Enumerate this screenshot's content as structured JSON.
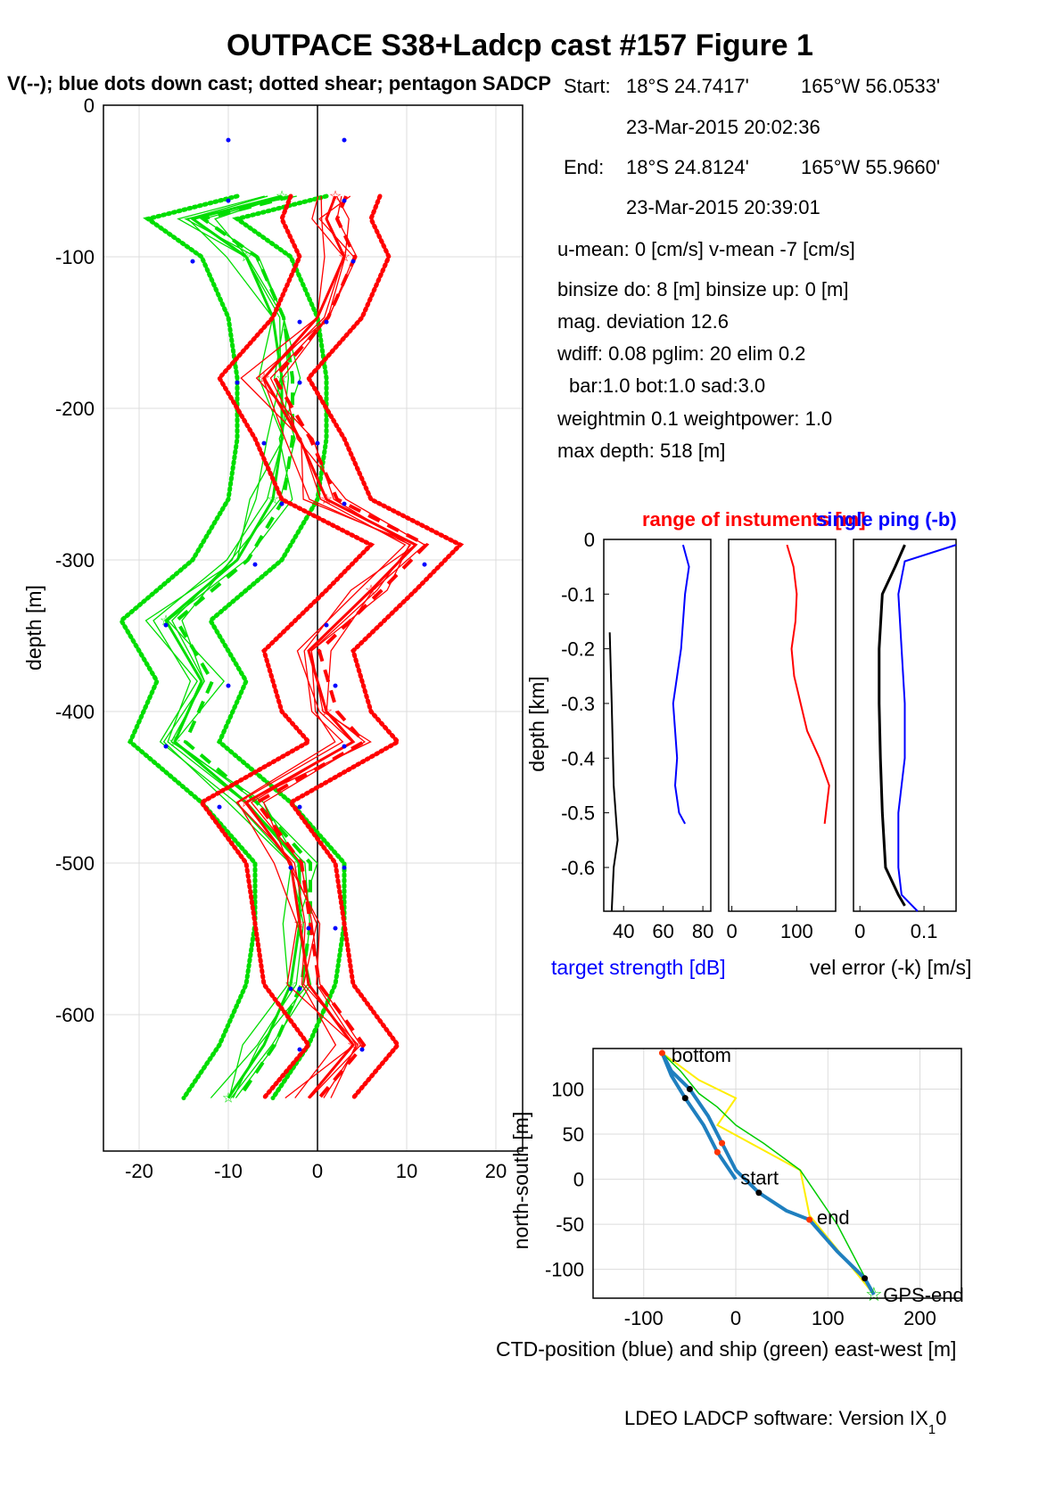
{
  "figure": {
    "title": "OUTPACE S38+Ladcp cast #157  Figure 1",
    "subtitle": "V(--); blue dots down cast; dotted shear; pentagon SADCP",
    "footer": "LDEO LADCP software: Version IX",
    "footer_sub": "1",
    "footer_tail": "0"
  },
  "info": {
    "start_label": "Start:",
    "start_lat": "18°S 24.7417'",
    "start_lon": "165°W 56.0533'",
    "start_time": "23-Mar-2015 20:02:36",
    "end_label": "End:",
    "end_lat": "18°S 24.8124'",
    "end_lon": "165°W 55.9660'",
    "end_time": "23-Mar-2015 20:39:01",
    "umean": "u-mean:   0 [cm/s]    v-mean  -7 [cm/s]",
    "binsize": "binsize do: 8 [m]  binsize up:  0 [m]",
    "magdev": "mag. deviation 12.6",
    "wdiff": "wdiff: 0.08  pglim: 20  elim 0.2",
    "bar": "bar:1.0 bot:1.0 sad:3.0",
    "weight": "weightmin 0.1  weightpower: 1.0",
    "maxdepth": "max depth: 518 [m]"
  },
  "chart_data": [
    {
      "type": "line",
      "ylabel": "depth [m]",
      "xlim": [
        -24,
        23
      ],
      "ylim": [
        -690,
        0
      ],
      "xticks": [
        "-20",
        "-10",
        "0",
        "10",
        "20"
      ],
      "yticks": [
        "0",
        "-100",
        "-200",
        "-300",
        "-400",
        "-500",
        "-600"
      ],
      "grid": true,
      "series": [
        {
          "color": "#00dd00",
          "depth": [
            -60,
            -75,
            -100,
            -140,
            -180,
            -220,
            -260,
            -300,
            -340,
            -380,
            -420,
            -460,
            -500,
            -540,
            -580,
            -620,
            -655
          ],
          "values": [
            -4,
            -14,
            -8,
            -5,
            -4,
            -4,
            -5,
            -9,
            -17,
            -13,
            -16,
            -8,
            -2,
            -2,
            -3,
            -6,
            -10
          ]
        },
        {
          "color": "#ff0000",
          "depth": [
            -60,
            -75,
            -100,
            -140,
            -180,
            -220,
            -260,
            -290,
            -320,
            -360,
            -400,
            -420,
            -460,
            -500,
            -540,
            -580,
            -620,
            -655
          ],
          "values": [
            2,
            1,
            3,
            0,
            -6,
            -2,
            1,
            11,
            6,
            -1,
            1,
            4,
            -8,
            -3,
            -2,
            -1,
            4,
            -1
          ]
        }
      ],
      "blue_dots_depth": [
        -23,
        -63,
        -103,
        -143,
        -183,
        -223,
        -263,
        -303,
        -343,
        -383,
        -423,
        -463,
        -503,
        -543,
        -583,
        -623
      ],
      "blue_dots_green": [
        -10,
        -10,
        -14,
        -2,
        -9,
        -6,
        -4,
        -7,
        -17,
        -10,
        -17,
        -11,
        -3,
        -1,
        -3,
        -2
      ],
      "blue_dots_red": [
        3,
        3,
        4,
        1,
        -2,
        0,
        3,
        12,
        1,
        2,
        3,
        -2,
        3,
        2,
        -2,
        5
      ]
    },
    {
      "type": "line",
      "xlabel": "target strength [dB]",
      "ylabel": "depth [km]",
      "xlim": [
        30,
        84
      ],
      "ylim": [
        -0.68,
        0
      ],
      "xticks": [
        "40",
        "60",
        "80"
      ],
      "yticks": [
        "0",
        "-0.1",
        "-0.2",
        "-0.3",
        "-0.4",
        "-0.5",
        "-0.6"
      ],
      "series": [
        {
          "color": "#0000ff",
          "depth": [
            -0.01,
            -0.05,
            -0.1,
            -0.15,
            -0.2,
            -0.25,
            -0.3,
            -0.35,
            -0.4,
            -0.45,
            -0.5,
            -0.52
          ],
          "values": [
            70,
            73,
            71,
            70,
            69,
            67,
            65,
            66,
            67,
            66,
            68,
            71
          ]
        },
        {
          "color": "#000000",
          "depth": [
            -0.17,
            -0.3,
            -0.45,
            -0.55,
            -0.6,
            -0.68
          ],
          "values": [
            33,
            34,
            35,
            37,
            35,
            34
          ]
        }
      ]
    },
    {
      "type": "line",
      "title": "range of instuments [m]",
      "xlim": [
        -5,
        160
      ],
      "ylim": [
        -0.68,
        0
      ],
      "xticks": [
        "0",
        "100"
      ],
      "series": [
        {
          "color": "#ff0000",
          "depth": [
            -0.01,
            -0.05,
            -0.1,
            -0.15,
            -0.2,
            -0.25,
            -0.3,
            -0.35,
            -0.4,
            -0.45,
            -0.5,
            -0.52
          ],
          "values": [
            85,
            95,
            100,
            98,
            92,
            96,
            106,
            116,
            135,
            150,
            145,
            143
          ]
        }
      ]
    },
    {
      "type": "line",
      "title": "single ping (-b)",
      "xlabel": "vel error (-k) [m/s]",
      "xlim": [
        -0.01,
        0.15
      ],
      "ylim": [
        -0.68,
        0
      ],
      "xticks": [
        "0",
        "0.1"
      ],
      "series": [
        {
          "color": "#000000",
          "depth": [
            -0.01,
            -0.05,
            -0.1,
            -0.2,
            -0.3,
            -0.4,
            -0.5,
            -0.6,
            -0.65,
            -0.67
          ],
          "values": [
            0.07,
            0.055,
            0.035,
            0.03,
            0.03,
            0.032,
            0.035,
            0.04,
            0.06,
            0.07
          ]
        },
        {
          "color": "#0000ff",
          "depth": [
            -0.01,
            -0.04,
            -0.1,
            -0.2,
            -0.3,
            -0.4,
            -0.5,
            -0.6,
            -0.65,
            -0.68
          ],
          "values": [
            0.15,
            0.07,
            0.06,
            0.065,
            0.07,
            0.07,
            0.06,
            0.06,
            0.065,
            0.09
          ]
        }
      ]
    },
    {
      "type": "scatter",
      "xlabel": "CTD-position (blue) and ship (green) east-west [m]",
      "ylabel": "north-south [m]",
      "xlim": [
        -155,
        245
      ],
      "ylim": [
        -132,
        145
      ],
      "xticks": [
        "-100",
        "0",
        "100",
        "200"
      ],
      "yticks": [
        "100",
        "50",
        "0",
        "-50",
        "-100"
      ],
      "grid": true,
      "ctd_track": [
        [
          0,
          0
        ],
        [
          -20,
          30
        ],
        [
          -35,
          60
        ],
        [
          -55,
          90
        ],
        [
          -70,
          115
        ],
        [
          -80,
          140
        ],
        [
          -70,
          120
        ],
        [
          -50,
          100
        ],
        [
          -30,
          70
        ],
        [
          -15,
          40
        ],
        [
          0,
          10
        ],
        [
          25,
          -15
        ],
        [
          55,
          -35
        ],
        [
          80,
          -45
        ],
        [
          110,
          -80
        ],
        [
          140,
          -110
        ],
        [
          150,
          -128
        ]
      ],
      "ship_track": [
        [
          -80,
          140
        ],
        [
          -60,
          120
        ],
        [
          -40,
          95
        ],
        [
          -20,
          80
        ],
        [
          0,
          60
        ],
        [
          30,
          40
        ],
        [
          70,
          10
        ],
        [
          110,
          -50
        ],
        [
          150,
          -128
        ]
      ],
      "yellow_track": [
        [
          -80,
          140
        ],
        [
          -40,
          110
        ],
        [
          0,
          90
        ],
        [
          -20,
          60
        ],
        [
          70,
          10
        ],
        [
          80,
          -40
        ],
        [
          150,
          -128
        ]
      ],
      "labels": [
        {
          "text": "bottom",
          "x": -70,
          "y": 138
        },
        {
          "text": "start",
          "x": 5,
          "y": 2
        },
        {
          "text": "end",
          "x": 88,
          "y": -42
        },
        {
          "text": "GPS-end",
          "x": 160,
          "y": -128
        }
      ]
    }
  ]
}
